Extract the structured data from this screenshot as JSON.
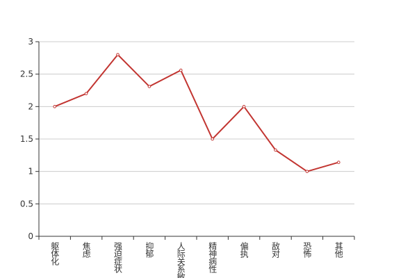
{
  "chart_data": {
    "type": "line",
    "categories": [
      "躯体化",
      "焦虑",
      "强迫症状",
      "抑郁",
      "人际关系敏感",
      "精神病性",
      "偏执",
      "敌对",
      "恐怖",
      "其他"
    ],
    "values": [
      2,
      2.2,
      2.8,
      2.31,
      2.56,
      1.5,
      2,
      1.33,
      1,
      1.14
    ],
    "color": "#c23531",
    "ylim": [
      0,
      3
    ],
    "yticks": [
      0,
      0.5,
      1,
      1.5,
      2,
      2.5,
      3
    ],
    "grid": true
  }
}
